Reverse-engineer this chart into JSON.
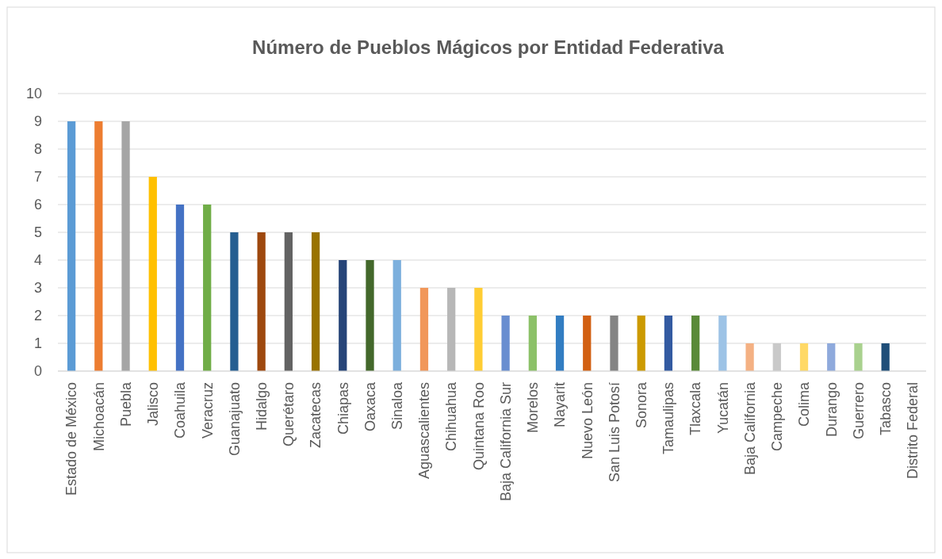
{
  "chart_data": {
    "type": "bar",
    "title": "Número de Pueblos Mágicos por Entidad Federativa",
    "categories": [
      "Estado de México",
      "Michoacán",
      "Puebla",
      "Jalisco",
      "Coahuila",
      "Veracruz",
      "Guanajuato",
      "Hidalgo",
      "Querétaro",
      "Zacatecas",
      "Chiapas",
      "Oaxaca",
      "Sinaloa",
      "Aguascalientes",
      "Chihuahua",
      "Quintana Roo",
      "Baja California Sur",
      "Morelos",
      "Nayarit",
      "Nuevo León",
      "San Luis Potosí",
      "Sonora",
      "Tamaulipas",
      "Tlaxcala",
      "Yucatán",
      "Baja California",
      "Campeche",
      "Colima",
      "Durango",
      "Guerrero",
      "Tabasco",
      "Distrito Federal"
    ],
    "values": [
      9,
      9,
      9,
      7,
      6,
      6,
      5,
      5,
      5,
      5,
      4,
      4,
      4,
      3,
      3,
      3,
      2,
      2,
      2,
      2,
      2,
      2,
      2,
      2,
      2,
      1,
      1,
      1,
      1,
      1,
      1,
      0
    ],
    "colors": [
      "#5b9bd5",
      "#ed7d31",
      "#a5a5a5",
      "#ffc000",
      "#4472c4",
      "#70ad47",
      "#255e91",
      "#9e480e",
      "#636363",
      "#997300",
      "#264478",
      "#43682b",
      "#7cafdd",
      "#f1975a",
      "#b7b7b7",
      "#ffcd33",
      "#698ed0",
      "#8cc168",
      "#327dc2",
      "#d26012",
      "#848484",
      "#cc9a00",
      "#335aa1",
      "#5a8a39",
      "#9dc3e6",
      "#f4b183",
      "#c9c9c9",
      "#ffd966",
      "#8faadc",
      "#a9d18e",
      "#1f4e79",
      "#5b9bd5"
    ],
    "ylim": [
      0,
      10
    ],
    "yticks": [
      0,
      1,
      2,
      3,
      4,
      5,
      6,
      7,
      8,
      9,
      10
    ],
    "grid": "y"
  }
}
